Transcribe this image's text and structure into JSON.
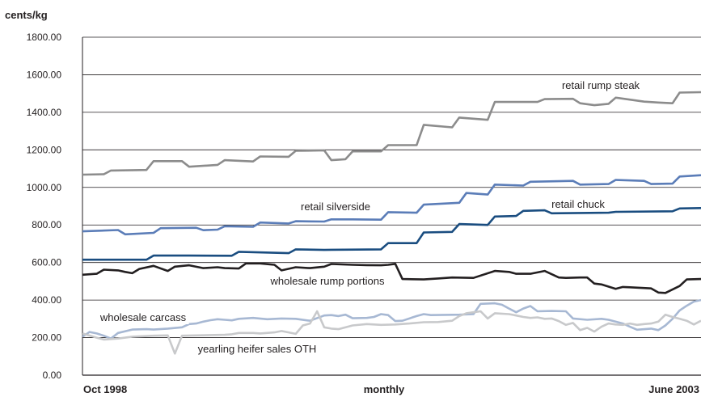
{
  "chart_data": {
    "type": "line",
    "unit_label": "cents/kg",
    "ylim": [
      0,
      1800
    ],
    "yticks": [
      "0.00",
      "200.00",
      "400.00",
      "600.00",
      "800.00",
      "1000.00",
      "1200.00",
      "1400.00",
      "1600.00",
      "1800.00"
    ],
    "x_labels": {
      "start": "Oct 1998",
      "middle": "monthly",
      "end": "June 2003"
    },
    "x_period": {
      "first": 0,
      "last": 56
    },
    "grid": true,
    "series": [
      {
        "name": "retail rump steak",
        "color": "#8c8c8c",
        "values": [
          [
            0,
            1068
          ],
          [
            3,
            1070
          ],
          [
            4,
            1090
          ],
          [
            9,
            1093
          ],
          [
            10,
            1140
          ],
          [
            14,
            1140
          ],
          [
            15,
            1110
          ],
          [
            19,
            1120
          ],
          [
            20,
            1145
          ],
          [
            24,
            1138
          ],
          [
            25,
            1165
          ],
          [
            29,
            1163
          ],
          [
            30,
            1195
          ],
          [
            34,
            1197
          ],
          [
            35,
            1145
          ],
          [
            37,
            1150
          ],
          [
            38,
            1192
          ],
          [
            42,
            1192
          ],
          [
            43,
            1225
          ],
          [
            47,
            1225
          ],
          [
            48,
            1333
          ],
          [
            52,
            1320
          ],
          [
            53,
            1372
          ],
          [
            57,
            1360
          ],
          [
            58,
            1455
          ],
          [
            64,
            1455
          ],
          [
            65,
            1470
          ],
          [
            69,
            1472
          ],
          [
            70,
            1448
          ],
          [
            72,
            1438
          ],
          [
            74,
            1445
          ],
          [
            75,
            1478
          ],
          [
            79,
            1457
          ],
          [
            81,
            1452
          ],
          [
            83,
            1448
          ],
          [
            84,
            1505
          ],
          [
            87,
            1507
          ]
        ]
      },
      {
        "name": "retail silverside",
        "color": "#5b7db8",
        "values": [
          [
            0,
            766
          ],
          [
            5,
            773
          ],
          [
            6,
            750
          ],
          [
            10,
            758
          ],
          [
            11,
            783
          ],
          [
            16,
            785
          ],
          [
            17,
            772
          ],
          [
            19,
            775
          ],
          [
            20,
            793
          ],
          [
            24,
            790
          ],
          [
            25,
            813
          ],
          [
            29,
            808
          ],
          [
            30,
            820
          ],
          [
            34,
            818
          ],
          [
            35,
            830
          ],
          [
            38,
            830
          ],
          [
            42,
            828
          ],
          [
            43,
            868
          ],
          [
            47,
            865
          ],
          [
            48,
            908
          ],
          [
            53,
            918
          ],
          [
            54,
            970
          ],
          [
            57,
            962
          ],
          [
            58,
            1015
          ],
          [
            62,
            1010
          ],
          [
            63,
            1030
          ],
          [
            69,
            1035
          ],
          [
            70,
            1015
          ],
          [
            74,
            1018
          ],
          [
            75,
            1040
          ],
          [
            79,
            1035
          ],
          [
            80,
            1018
          ],
          [
            83,
            1020
          ],
          [
            84,
            1058
          ],
          [
            87,
            1065
          ]
        ]
      },
      {
        "name": "retail chuck",
        "color": "#1a4d80",
        "values": [
          [
            0,
            615
          ],
          [
            5,
            615
          ],
          [
            9,
            615
          ],
          [
            10,
            637
          ],
          [
            15,
            637
          ],
          [
            21,
            636
          ],
          [
            22,
            657
          ],
          [
            29,
            650
          ],
          [
            30,
            670
          ],
          [
            34,
            667
          ],
          [
            35,
            668
          ],
          [
            42,
            670
          ],
          [
            43,
            703
          ],
          [
            47,
            703
          ],
          [
            48,
            760
          ],
          [
            52,
            763
          ],
          [
            53,
            805
          ],
          [
            57,
            800
          ],
          [
            58,
            845
          ],
          [
            61,
            848
          ],
          [
            62,
            875
          ],
          [
            65,
            878
          ],
          [
            66,
            862
          ],
          [
            74,
            865
          ],
          [
            75,
            870
          ],
          [
            83,
            873
          ],
          [
            84,
            888
          ],
          [
            87,
            890
          ]
        ]
      },
      {
        "name": "wholesale rump portions",
        "color": "#231f20",
        "values": [
          [
            0,
            535
          ],
          [
            2,
            540
          ],
          [
            3,
            562
          ],
          [
            5,
            558
          ],
          [
            6,
            550
          ],
          [
            7,
            543
          ],
          [
            8,
            566
          ],
          [
            10,
            582
          ],
          [
            12,
            555
          ],
          [
            13,
            578
          ],
          [
            15,
            585
          ],
          [
            17,
            570
          ],
          [
            19,
            575
          ],
          [
            20,
            570
          ],
          [
            22,
            568
          ],
          [
            23,
            595
          ],
          [
            25,
            595
          ],
          [
            27,
            588
          ],
          [
            28,
            558
          ],
          [
            30,
            575
          ],
          [
            32,
            570
          ],
          [
            34,
            578
          ],
          [
            35,
            592
          ],
          [
            38,
            588
          ],
          [
            40,
            586
          ],
          [
            42,
            585
          ],
          [
            43,
            588
          ],
          [
            44,
            593
          ],
          [
            45,
            512
          ],
          [
            48,
            510
          ],
          [
            50,
            515
          ],
          [
            52,
            520
          ],
          [
            55,
            518
          ],
          [
            58,
            555
          ],
          [
            60,
            550
          ],
          [
            61,
            540
          ],
          [
            63,
            540
          ],
          [
            65,
            555
          ],
          [
            67,
            520
          ],
          [
            68,
            518
          ],
          [
            70,
            520
          ],
          [
            71,
            520
          ],
          [
            72,
            488
          ],
          [
            73,
            483
          ],
          [
            75,
            460
          ],
          [
            76,
            470
          ],
          [
            77,
            468
          ],
          [
            80,
            462
          ],
          [
            81,
            440
          ],
          [
            82,
            438
          ],
          [
            84,
            475
          ],
          [
            85,
            510
          ],
          [
            87,
            512
          ]
        ]
      },
      {
        "name": "wholesale carcass",
        "color": "#a7b8d3",
        "values": [
          [
            0,
            205
          ],
          [
            1,
            230
          ],
          [
            2,
            222
          ],
          [
            3,
            210
          ],
          [
            4,
            195
          ],
          [
            5,
            225
          ],
          [
            7,
            243
          ],
          [
            9,
            245
          ],
          [
            10,
            243
          ],
          [
            12,
            248
          ],
          [
            14,
            255
          ],
          [
            15,
            272
          ],
          [
            16,
            275
          ],
          [
            17,
            285
          ],
          [
            18,
            293
          ],
          [
            19,
            298
          ],
          [
            20,
            295
          ],
          [
            21,
            292
          ],
          [
            22,
            300
          ],
          [
            24,
            305
          ],
          [
            26,
            298
          ],
          [
            28,
            302
          ],
          [
            30,
            300
          ],
          [
            32,
            290
          ],
          [
            34,
            318
          ],
          [
            35,
            320
          ],
          [
            36,
            315
          ],
          [
            37,
            322
          ],
          [
            38,
            303
          ],
          [
            40,
            305
          ],
          [
            41,
            310
          ],
          [
            42,
            325
          ],
          [
            43,
            320
          ],
          [
            44,
            288
          ],
          [
            45,
            290
          ],
          [
            47,
            315
          ],
          [
            48,
            325
          ],
          [
            49,
            320
          ],
          [
            53,
            322
          ],
          [
            55,
            325
          ],
          [
            56,
            380
          ],
          [
            58,
            383
          ],
          [
            59,
            375
          ],
          [
            60,
            355
          ],
          [
            61,
            335
          ],
          [
            62,
            355
          ],
          [
            63,
            368
          ],
          [
            64,
            340
          ],
          [
            66,
            342
          ],
          [
            68,
            340
          ],
          [
            69,
            302
          ],
          [
            71,
            295
          ],
          [
            73,
            300
          ],
          [
            74,
            295
          ],
          [
            76,
            275
          ],
          [
            77,
            258
          ],
          [
            78,
            242
          ],
          [
            80,
            248
          ],
          [
            81,
            240
          ],
          [
            82,
            265
          ],
          [
            83,
            300
          ],
          [
            84,
            345
          ],
          [
            85,
            370
          ],
          [
            86,
            392
          ],
          [
            87,
            400
          ]
        ]
      },
      {
        "name": "yearling heifer sales OTH",
        "color": "#c8c9cb",
        "values": [
          [
            0,
            222
          ],
          [
            2,
            200
          ],
          [
            3,
            190
          ],
          [
            5,
            195
          ],
          [
            7,
            205
          ],
          [
            10,
            210
          ],
          [
            12,
            212
          ],
          [
            13,
            115
          ],
          [
            14,
            210
          ],
          [
            16,
            212
          ],
          [
            20,
            215
          ],
          [
            21,
            218
          ],
          [
            22,
            225
          ],
          [
            24,
            225
          ],
          [
            25,
            222
          ],
          [
            27,
            228
          ],
          [
            28,
            235
          ],
          [
            30,
            220
          ],
          [
            31,
            265
          ],
          [
            32,
            275
          ],
          [
            33,
            340
          ],
          [
            34,
            255
          ],
          [
            35,
            248
          ],
          [
            36,
            245
          ],
          [
            38,
            265
          ],
          [
            40,
            272
          ],
          [
            42,
            268
          ],
          [
            44,
            270
          ],
          [
            46,
            275
          ],
          [
            48,
            282
          ],
          [
            50,
            283
          ],
          [
            52,
            290
          ],
          [
            53,
            315
          ],
          [
            54,
            330
          ],
          [
            55,
            335
          ],
          [
            56,
            340
          ],
          [
            57,
            302
          ],
          [
            58,
            330
          ],
          [
            60,
            325
          ],
          [
            61,
            318
          ],
          [
            62,
            310
          ],
          [
            63,
            305
          ],
          [
            64,
            308
          ],
          [
            65,
            300
          ],
          [
            66,
            302
          ],
          [
            67,
            288
          ],
          [
            68,
            268
          ],
          [
            69,
            278
          ],
          [
            70,
            240
          ],
          [
            71,
            252
          ],
          [
            72,
            232
          ],
          [
            73,
            258
          ],
          [
            74,
            275
          ],
          [
            75,
            270
          ],
          [
            76,
            268
          ],
          [
            77,
            275
          ],
          [
            78,
            268
          ],
          [
            79,
            272
          ],
          [
            80,
            275
          ],
          [
            81,
            285
          ],
          [
            82,
            322
          ],
          [
            83,
            310
          ],
          [
            84,
            300
          ],
          [
            85,
            290
          ],
          [
            86,
            270
          ],
          [
            87,
            290
          ]
        ]
      }
    ]
  }
}
